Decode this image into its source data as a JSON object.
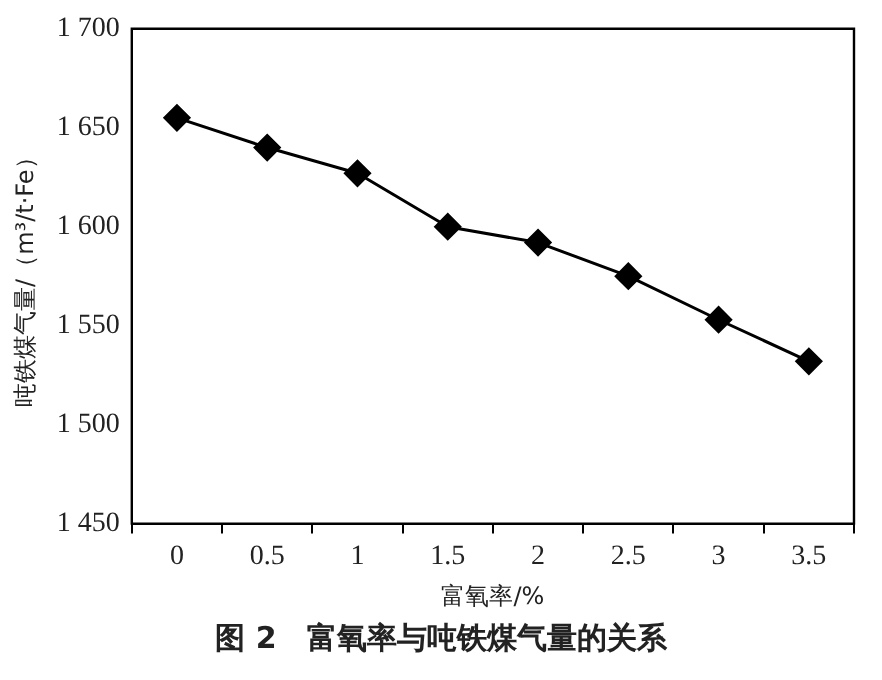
{
  "chart_data": {
    "type": "line",
    "title": "图 2　富氧率与吨铁煤气量的关系",
    "xlabel": "富氧率/%",
    "ylabel": "吨铁煤气量/（m³/t·Fe）",
    "categories": [
      "0",
      "0.5",
      "1",
      "1.5",
      "2",
      "2.5",
      "3",
      "3.5"
    ],
    "series": [
      {
        "color": "#000000",
        "values": [
          1655,
          1640,
          1627,
          1600,
          1592,
          1575,
          1553,
          1532
        ]
      }
    ],
    "ylim": [
      1450,
      1700
    ],
    "yticks": [
      {
        "value": 1450,
        "label": "1 450"
      },
      {
        "value": 1500,
        "label": "1 500"
      },
      {
        "value": 1550,
        "label": "1 550"
      },
      {
        "value": 1600,
        "label": "1 600"
      },
      {
        "value": 1650,
        "label": "1 650"
      },
      {
        "value": 1700,
        "label": "1 700"
      }
    ],
    "grid": false,
    "legend": false,
    "marker": "diamond",
    "line_style": "solid"
  }
}
